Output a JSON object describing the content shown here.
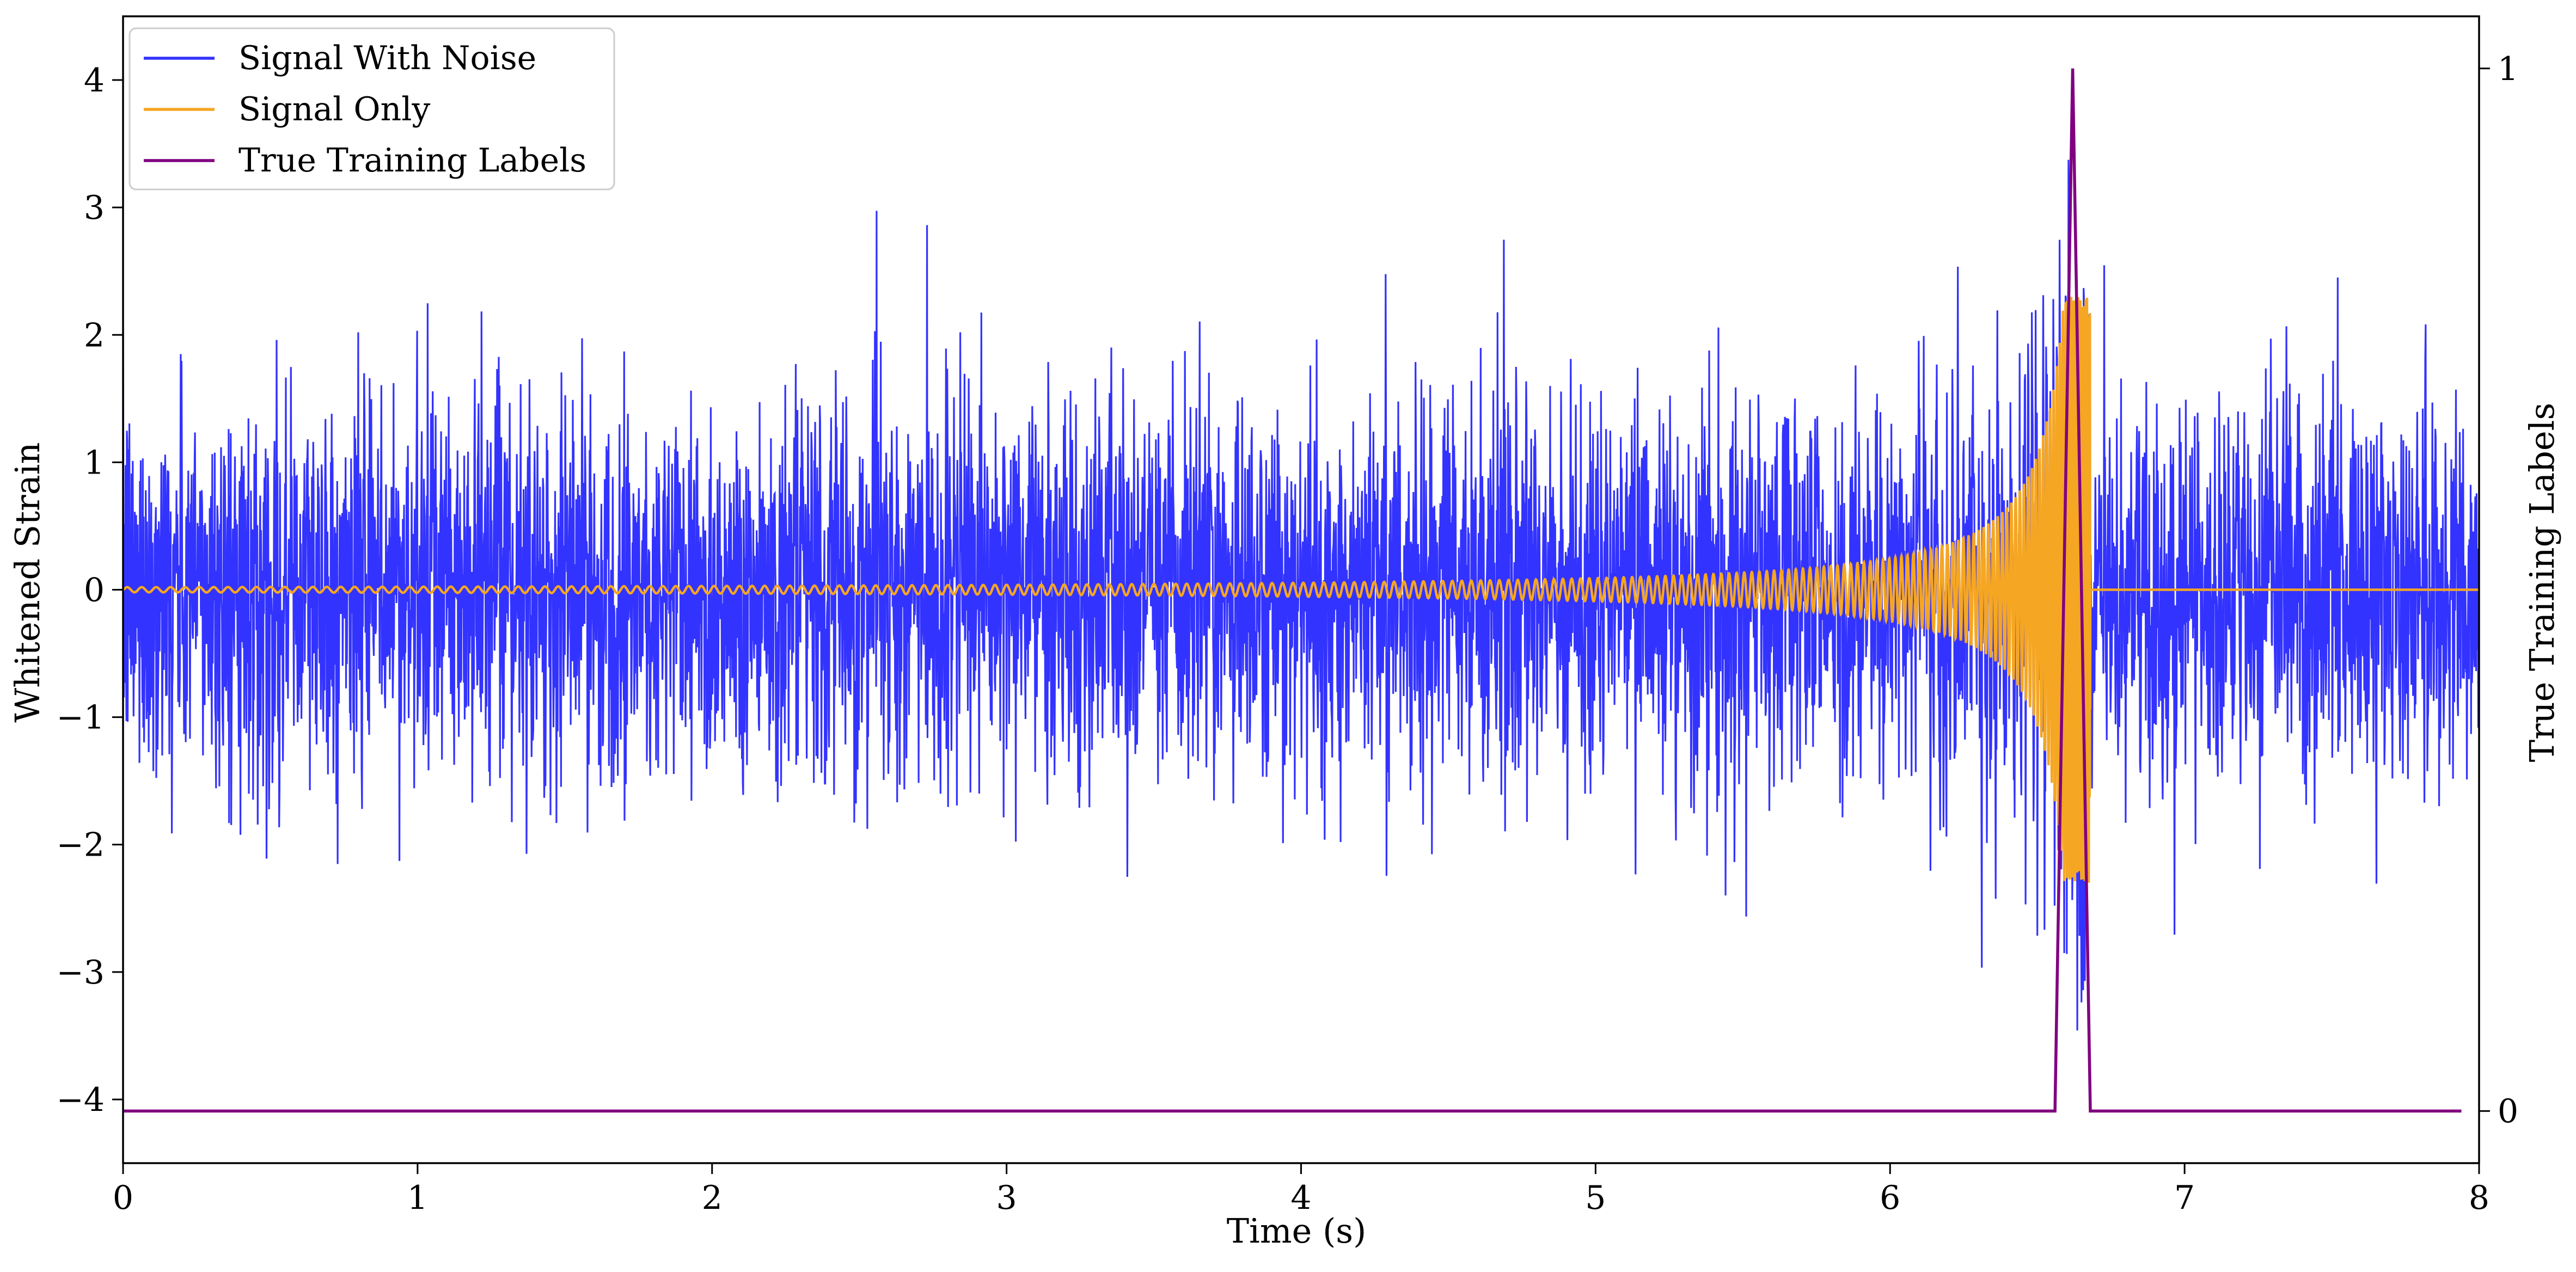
{
  "chart_data": {
    "type": "line",
    "title": "",
    "xlabel": "Time (s)",
    "ylabel": "Whitened Strain",
    "y2label": "True Training Labels",
    "xlim": [
      0,
      8
    ],
    "ylim": [
      -4.5,
      4.5
    ],
    "y2lim": [
      -0.05,
      1.05
    ],
    "xticks": [
      0,
      1,
      2,
      3,
      4,
      5,
      6,
      7,
      8
    ],
    "xtick_labels": [
      "0",
      "1",
      "2",
      "3",
      "4",
      "5",
      "6",
      "7",
      "8"
    ],
    "yticks": [
      -4,
      -3,
      -2,
      -1,
      0,
      1,
      2,
      3,
      4
    ],
    "ytick_labels": [
      "−4",
      "−3",
      "−2",
      "−1",
      "0",
      "1",
      "2",
      "3",
      "4"
    ],
    "y2ticks": [
      0,
      1
    ],
    "y2tick_labels": [
      "0",
      "1"
    ],
    "grid": false,
    "legend": {
      "position": "top-left",
      "entries": [
        "Signal With Noise",
        "Signal Only",
        "True Training Labels"
      ]
    },
    "series": [
      {
        "name": "Signal With Noise",
        "color": "#3333ff",
        "axis": "left",
        "description_points": "stationary noise, roughly -2.5 to 2.5 with peaks near 3 and -3",
        "noise_std": 0.75,
        "x_range": [
          0,
          8
        ],
        "sample_rate": 1024
      },
      {
        "name": "Signal Only",
        "color": "#f5a623",
        "axis": "left",
        "chirp": {
          "t_merger": 6.68,
          "amp_start": 0.02,
          "amp_peak": 2.3,
          "f_start": 3.3,
          "f_end": 60,
          "end_x": 8
        }
      },
      {
        "name": "True Training Labels",
        "color": "#800080",
        "axis": "right",
        "x": [
          0,
          6.56,
          6.62,
          6.68,
          7.94
        ],
        "y": [
          0,
          0,
          1,
          0,
          0
        ]
      }
    ]
  }
}
